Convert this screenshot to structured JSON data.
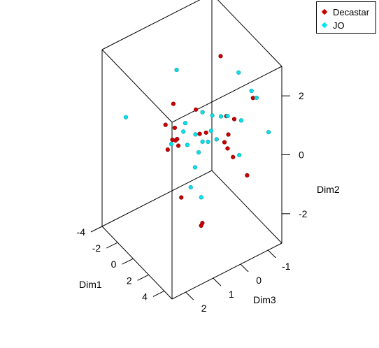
{
  "legend": {
    "items": [
      {
        "label": "Decastar",
        "color": "#cc0000"
      },
      {
        "label": "JO",
        "color": "#00e5ee"
      }
    ]
  },
  "chart_data": {
    "type": "scatter",
    "dimensions": 3,
    "axes": {
      "x": {
        "label": "Dim1",
        "range": [
          -4,
          5
        ],
        "ticks": [
          -4,
          -2,
          0,
          2,
          4
        ]
      },
      "y": {
        "label": "Dim2",
        "range": [
          -3,
          3
        ],
        "ticks": [
          -2,
          0,
          2
        ]
      },
      "z": {
        "label": "Dim3",
        "range": [
          -1.5,
          2.5
        ],
        "ticks": [
          -1,
          0,
          1,
          2
        ]
      }
    },
    "series": [
      {
        "name": "Decastar",
        "color": "#cc0000",
        "points": [
          [
            -2.6,
            0.5,
            0.3
          ],
          [
            -2.9,
            -0.2,
            0.5
          ],
          [
            -1.6,
            -0.6,
            0.4
          ],
          [
            -0.3,
            0.6,
            0.9
          ],
          [
            -0.2,
            0.2,
            0.9
          ],
          [
            0.1,
            0.4,
            1.1
          ],
          [
            0.0,
            0.3,
            0.9
          ],
          [
            0.3,
            1.1,
            0.3
          ],
          [
            -0.5,
            -0.1,
            1.1
          ],
          [
            1.6,
            -1.1,
            1.2
          ],
          [
            2.9,
            -1.8,
            0.8
          ],
          [
            3.8,
            -1.5,
            1.1
          ],
          [
            1.4,
            0.8,
            -0.5
          ],
          [
            -0.4,
            2.2,
            -0.8
          ],
          [
            0.8,
            -0.3,
            -0.6
          ],
          [
            1.2,
            -0.4,
            -0.6
          ],
          [
            1.3,
            0.1,
            -0.6
          ],
          [
            1.9,
            -0.5,
            -0.6
          ],
          [
            2.0,
            1.2,
            -1.3
          ],
          [
            2.3,
            -1.2,
            -1.0
          ],
          [
            1.0,
            0.4,
            -0.9
          ],
          [
            0.2,
            0.1,
            -0.1
          ],
          [
            1.5,
            0.7,
            0.5
          ]
        ]
      },
      {
        "name": "JO",
        "color": "#00e5ee",
        "points": [
          [
            -4.3,
            0.9,
            -0.3
          ],
          [
            -1.3,
            1.4,
            2.4
          ],
          [
            -1.8,
            -0.5,
            0.6
          ],
          [
            -0.6,
            0.2,
            0.5
          ],
          [
            -0.8,
            -0.4,
            0.3
          ],
          [
            1.7,
            -1.4,
            0.5
          ],
          [
            1.4,
            -1.0,
            0.8
          ],
          [
            0.9,
            -0.6,
            0.5
          ],
          [
            0.8,
            0.0,
            0.0
          ],
          [
            0.8,
            0.1,
            0.2
          ],
          [
            0.5,
            0.2,
            -0.2
          ],
          [
            1.2,
            0.1,
            -0.2
          ],
          [
            0.8,
            1.1,
            0.2
          ],
          [
            1.2,
            0.7,
            -0.6
          ],
          [
            2.0,
            -0.5,
            -0.8
          ],
          [
            1.0,
            0.9,
            -0.1
          ],
          [
            3.3,
            0.3,
            -1.5
          ],
          [
            0.5,
            1.7,
            -1.2
          ],
          [
            1.1,
            1.1,
            -1.5
          ],
          [
            1.4,
            0.9,
            -1.6
          ],
          [
            1.9,
            0.6,
            -0.9
          ],
          [
            0.7,
            0.6,
            -0.5
          ],
          [
            -0.1,
            0.1,
            0.2
          ],
          [
            0.3,
            -0.4,
            0.2
          ],
          [
            0.0,
            0.7,
            0.6
          ]
        ]
      }
    ]
  }
}
